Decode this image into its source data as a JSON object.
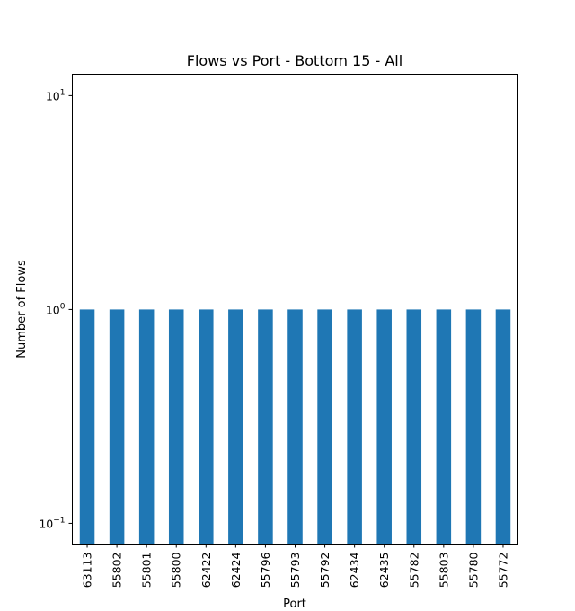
{
  "chart_data": {
    "type": "bar",
    "title": "Flows vs Port - Bottom 15 - All",
    "xlabel": "Port",
    "ylabel": "Number of Flows",
    "categories": [
      "63113",
      "55802",
      "55801",
      "55800",
      "62422",
      "62424",
      "55796",
      "55793",
      "55792",
      "62434",
      "62435",
      "55782",
      "55803",
      "55780",
      "55772"
    ],
    "values": [
      1,
      1,
      1,
      1,
      1,
      1,
      1,
      1,
      1,
      1,
      1,
      1,
      1,
      1,
      1
    ],
    "yscale": "log",
    "ylim": [
      0.08,
      12.6
    ],
    "yticks": [
      {
        "value": 0.1,
        "base": "10",
        "exp": "−1"
      },
      {
        "value": 1,
        "base": "10",
        "exp": "0"
      },
      {
        "value": 10,
        "base": "10",
        "exp": "1"
      }
    ],
    "grid": false,
    "legend": "none",
    "bar_color": "#1f77b4"
  }
}
